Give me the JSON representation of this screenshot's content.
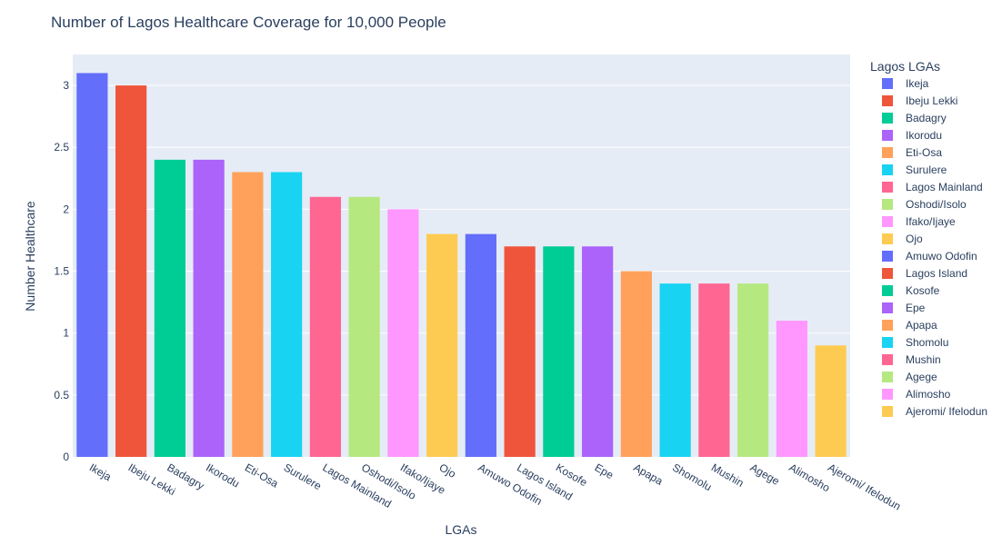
{
  "chart_data": {
    "type": "bar",
    "title": "Number of Lagos Healthcare Coverage for 10,000 People",
    "xlabel": "LGAs",
    "ylabel": "Number Healthcare",
    "ylim": [
      0,
      3.25
    ],
    "yticks": [
      0,
      0.5,
      1,
      1.5,
      2,
      2.5,
      3
    ],
    "ytick_labels": [
      "0",
      "0.5",
      "1",
      "1.5",
      "2",
      "2.5",
      "3"
    ],
    "grid": true,
    "legend_title": "Lagos LGAs",
    "legend_placement": "right",
    "categories": [
      "Ikeja",
      "Ibeju Lekki",
      "Badagry",
      "Ikorodu",
      "Eti-Osa",
      "Surulere",
      "Lagos Mainland",
      "Oshodi/Isolo",
      "Ifako/Ijaye",
      "Ojo",
      "Amuwo Odofin",
      "Lagos Island",
      "Kosofe",
      "Epe",
      "Apapa",
      "Shomolu",
      "Mushin",
      "Agege",
      "Alimosho",
      "Ajeromi/ Ifelodun"
    ],
    "values": [
      3.1,
      3.0,
      2.4,
      2.4,
      2.3,
      2.3,
      2.1,
      2.1,
      2.0,
      1.8,
      1.8,
      1.7,
      1.7,
      1.7,
      1.5,
      1.4,
      1.4,
      1.4,
      1.1,
      0.9
    ],
    "colors": [
      "#636efa",
      "#ef553b",
      "#00cc96",
      "#ab63fa",
      "#ffa15a",
      "#19d3f3",
      "#ff6692",
      "#b6e880",
      "#ff97ff",
      "#fecb52",
      "#636efa",
      "#ef553b",
      "#00cc96",
      "#ab63fa",
      "#ffa15a",
      "#19d3f3",
      "#ff6692",
      "#b6e880",
      "#ff97ff",
      "#fecb52"
    ],
    "plot_background": "#e5ecf6",
    "grid_color": "#ffffff",
    "text_color": "#2a3f5f"
  }
}
